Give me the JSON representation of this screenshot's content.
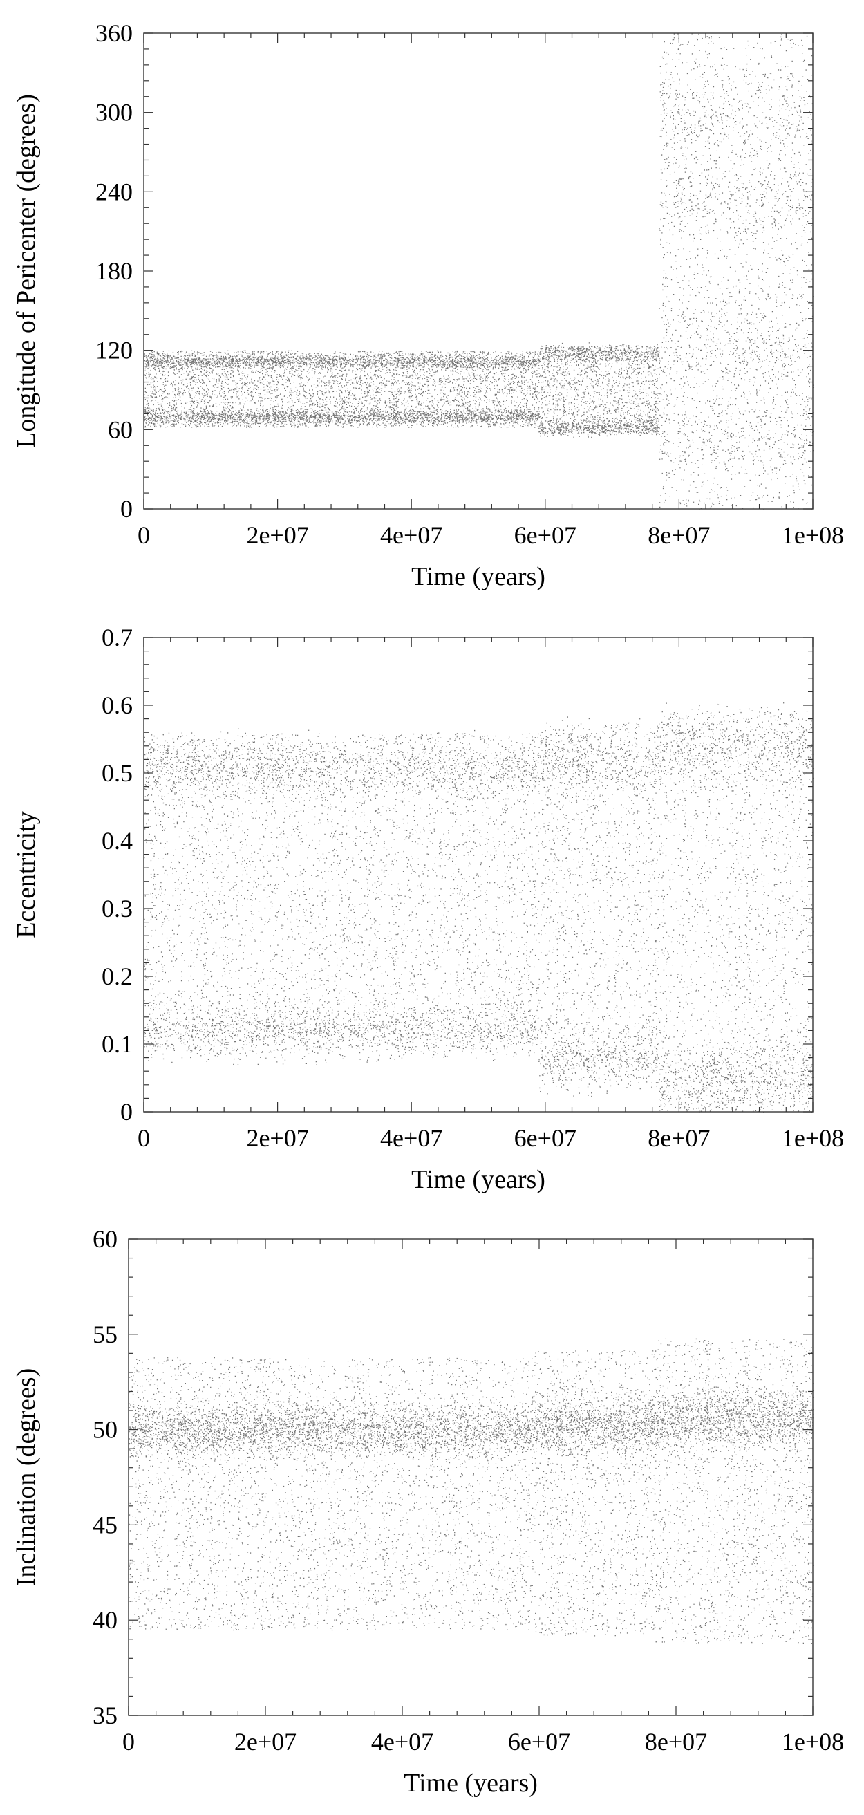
{
  "colors": {
    "band": "#000000",
    "background": "#ffffff",
    "frame": "#444444"
  },
  "chart_data": [
    {
      "type": "scatter",
      "title": "",
      "xlabel": "Time (years)",
      "ylabel": "Longitude of Pericenter (degrees)",
      "xlim": [
        0,
        100000000
      ],
      "ylim": [
        0,
        360
      ],
      "x_ticks": [
        "0",
        "2e+07",
        "4e+07",
        "6e+07",
        "8e+07",
        "1e+08"
      ],
      "y_ticks": [
        "0",
        "60",
        "120",
        "180",
        "240",
        "300",
        "360"
      ],
      "grid": false,
      "legend": "none",
      "regimes": [
        {
          "x_start": 0,
          "x_end": 59000000,
          "y_min": 62,
          "y_max": 120,
          "dense_centers": [
            70,
            112
          ]
        },
        {
          "x_start": 59000000,
          "x_end": 77000000,
          "y_min": 57,
          "y_max": 124,
          "dense_centers": [
            62,
            118
          ]
        },
        {
          "x_start": 77000000,
          "x_end": 100000000,
          "y_min": 0,
          "y_max": 360,
          "dense_centers": [
            58,
            122,
            238,
            300
          ]
        }
      ]
    },
    {
      "type": "scatter",
      "title": "",
      "xlabel": "Time (years)",
      "ylabel": "Eccentricity",
      "xlim": [
        0,
        100000000
      ],
      "ylim": [
        0,
        0.7
      ],
      "x_ticks": [
        "0",
        "2e+07",
        "4e+07",
        "6e+07",
        "8e+07",
        "1e+08"
      ],
      "y_ticks": [
        "0",
        "0.1",
        "0.2",
        "0.3",
        "0.4",
        "0.5",
        "0.6",
        "0.7"
      ],
      "grid": false,
      "legend": "none",
      "regimes": [
        {
          "x_start": 0,
          "x_end": 59000000,
          "y_min": 0.11,
          "y_max": 0.56,
          "dense_centers": [
            0.12,
            0.51
          ]
        },
        {
          "x_start": 59000000,
          "x_end": 77000000,
          "y_min": 0.065,
          "y_max": 0.575,
          "dense_centers": [
            0.08,
            0.52
          ]
        },
        {
          "x_start": 77000000,
          "x_end": 100000000,
          "y_min": 0.0,
          "y_max": 0.595,
          "dense_centers": [
            0.05,
            0.54
          ]
        }
      ]
    },
    {
      "type": "scatter",
      "title": "",
      "xlabel": "Time (years)",
      "ylabel": "Inclination (degrees)",
      "xlim": [
        0,
        100000000
      ],
      "ylim": [
        35,
        60
      ],
      "x_ticks": [
        "0",
        "2e+07",
        "4e+07",
        "6e+07",
        "8e+07",
        "1e+08"
      ],
      "y_ticks": [
        "35",
        "40",
        "45",
        "50",
        "55",
        "60"
      ],
      "grid": false,
      "legend": "none",
      "regimes": [
        {
          "x_start": 0,
          "x_end": 59000000,
          "y_min": 39.5,
          "y_max": 53.8,
          "dense_centers": [
            50.0
          ]
        },
        {
          "x_start": 59000000,
          "x_end": 77000000,
          "y_min": 39.2,
          "y_max": 54.2,
          "dense_centers": [
            50.3
          ]
        },
        {
          "x_start": 77000000,
          "x_end": 100000000,
          "y_min": 38.8,
          "y_max": 54.8,
          "dense_centers": [
            50.6
          ]
        }
      ]
    }
  ]
}
